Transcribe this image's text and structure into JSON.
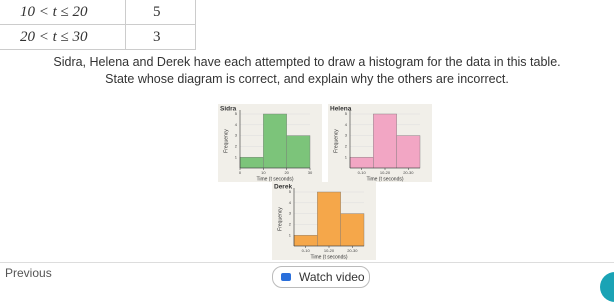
{
  "table": {
    "rows": [
      [
        "10 < t ≤ 20",
        "5"
      ],
      [
        "20 < t ≤ 30",
        "3"
      ]
    ]
  },
  "question": [
    "Sidra, Helena and Derek have each attempted to draw a histogram for the data in this table.",
    "State whose diagram is correct, and explain why the others are incorrect."
  ],
  "diagrams": [
    {
      "name": "Sidra",
      "color": "#7cc47a",
      "y_label": "Frequency",
      "x_label": "Time (t seconds)",
      "xlim": [
        0,
        30
      ],
      "ylim": [
        0,
        5
      ],
      "xticks": [
        0,
        10,
        20,
        30
      ],
      "yticks": [
        1,
        2,
        3,
        4,
        5
      ],
      "bars": [
        {
          "from": 0,
          "to": 10,
          "frequency": 1
        },
        {
          "from": 10,
          "to": 20,
          "frequency": 5
        },
        {
          "from": 20,
          "to": 30,
          "frequency": 3
        }
      ]
    },
    {
      "name": "Helena",
      "color": "#f2a6c4",
      "y_label": "Frequency",
      "x_label": "Time (t seconds)",
      "xlim": [
        0,
        30
      ],
      "ylim": [
        0,
        5
      ],
      "xticks": [
        {
          "value": 5,
          "label": "0-10"
        },
        {
          "value": 15,
          "label": "10-20"
        },
        {
          "value": 25,
          "label": "20-30"
        }
      ],
      "yticks": [
        1,
        2,
        3,
        4,
        5
      ],
      "bars": [
        {
          "from": 0,
          "to": 10,
          "frequency": 1
        },
        {
          "from": 10,
          "to": 20,
          "frequency": 5
        },
        {
          "from": 20,
          "to": 30,
          "frequency": 3
        }
      ]
    },
    {
      "name": "Derek",
      "color": "#f5a74a",
      "y_label": "Frequency",
      "x_label": "Time (t seconds)",
      "xlim": [
        0,
        30
      ],
      "ylim": [
        0,
        5
      ],
      "xticks": [
        {
          "value": 5,
          "label": "0-10"
        },
        {
          "value": 15,
          "label": "10-20"
        },
        {
          "value": 25,
          "label": "20-30"
        }
      ],
      "yticks": [
        1,
        2,
        3,
        4,
        5
      ],
      "bars": [
        {
          "from": 0,
          "to": 10,
          "frequency": 1
        },
        {
          "from": 10,
          "to": 20,
          "frequency": 5
        },
        {
          "from": 20,
          "to": 30,
          "frequency": 3
        }
      ]
    }
  ],
  "buttons": {
    "previous": "Previous",
    "watch": "Watch video"
  }
}
